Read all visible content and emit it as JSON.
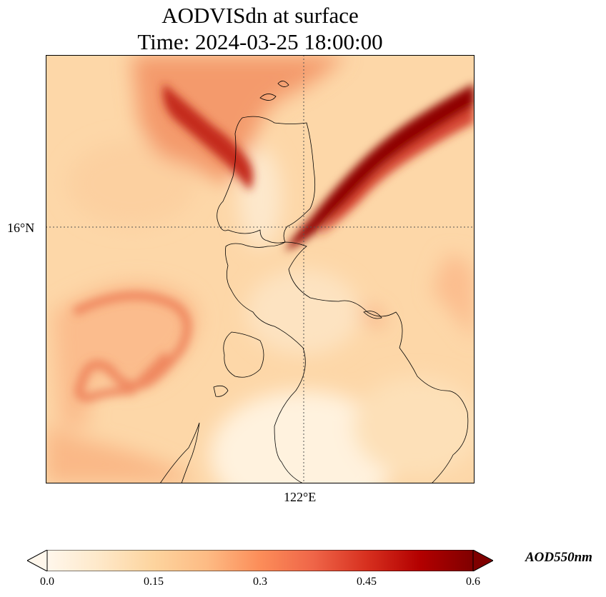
{
  "title_line1": "AODVISdn at surface",
  "title_line2": "Time: 2024-03-25 18:00:00",
  "map": {
    "lat_gridline_label": "16°N",
    "lon_gridline_label": "122°E",
    "coastline_color": "#000000",
    "gridline_color": "#555555"
  },
  "colorbar": {
    "colormap": "OrRd",
    "colors": [
      "#fff7ec",
      "#fee8c8",
      "#fdd49e",
      "#fdbb84",
      "#fc8d59",
      "#ef6548",
      "#d7301f",
      "#b30000",
      "#7f0000"
    ],
    "min": 0.0,
    "max": 0.6,
    "tick_labels": [
      "0.0",
      "0.15",
      "0.3",
      "0.45",
      "0.6"
    ],
    "units_label": "AOD550nm",
    "extend": "both"
  }
}
